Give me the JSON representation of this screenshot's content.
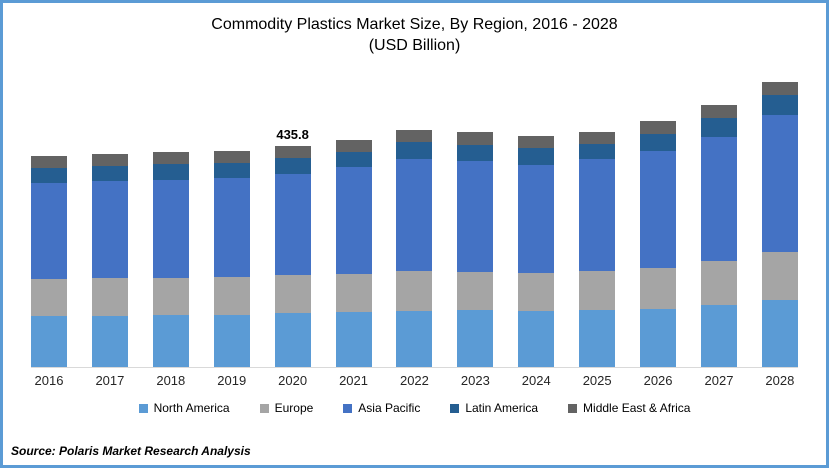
{
  "frame": {
    "border_color": "#5B9BD5",
    "background": "#ffffff"
  },
  "chart_data": {
    "type": "bar",
    "stacked": true,
    "title": "Commodity Plastics Market Size, By Region, 2016 - 2028",
    "subtitle": "(USD Billion)",
    "unit": "USD Billion",
    "categories": [
      "2016",
      "2017",
      "2018",
      "2019",
      "2020",
      "2021",
      "2022",
      "2023",
      "2024",
      "2025",
      "2026",
      "2027",
      "2028"
    ],
    "series": [
      {
        "name": "North America",
        "color": "#5B9BD5",
        "values": [
          99.7,
          101.1,
          103.0,
          103.0,
          106.2,
          108.2,
          111.5,
          112.9,
          110.9,
          112.9,
          114.9,
          121.4,
          132.6
        ]
      },
      {
        "name": "Europe",
        "color": "#A5A5A5",
        "values": [
          72.4,
          74.2,
          72.2,
          75.6,
          75.8,
          75.8,
          78.9,
          75.6,
          75.6,
          77.0,
          80.1,
          86.8,
          95.3
        ]
      },
      {
        "name": "Asia Pacific",
        "color": "#4472C4",
        "values": [
          190.1,
          190.8,
          194.2,
          196.0,
          199.3,
          211.8,
          221.1,
          219.7,
          213.8,
          221.1,
          230.3,
          245.3,
          271.0
        ]
      },
      {
        "name": "Latin America",
        "color": "#255E91",
        "values": [
          29.0,
          29.0,
          30.8,
          29.0,
          30.8,
          29.6,
          33.6,
          31.6,
          33.6,
          29.6,
          34.1,
          37.5,
          39.5
        ]
      },
      {
        "name": "Middle East & Africa",
        "color": "#636363",
        "values": [
          23.7,
          23.7,
          23.7,
          23.7,
          23.7,
          24.3,
          24.3,
          25.1,
          23.1,
          22.9,
          26.4,
          26.4,
          26.4
        ]
      }
    ],
    "annotations": [
      {
        "category": "2020",
        "text": "435.8"
      }
    ],
    "ylim": [
      0,
      580
    ],
    "gridlines": false,
    "axis_line_color": "#D9D9D9",
    "legend_position": "bottom"
  },
  "source": {
    "text": "Source: Polaris Market Research Analysis"
  }
}
